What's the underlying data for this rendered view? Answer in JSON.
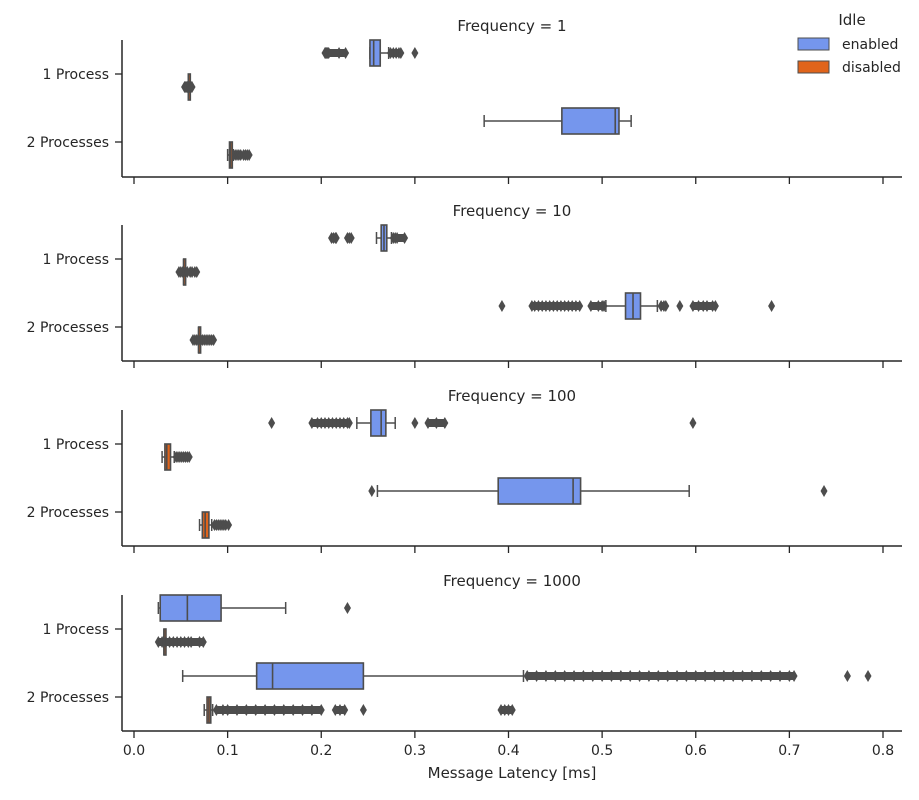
{
  "chart_data": {
    "type": "box",
    "xlabel": "Message Latency [ms]",
    "xlim": [
      -0.01,
      0.82
    ],
    "xticks": [
      0.0,
      0.1,
      0.2,
      0.3,
      0.4,
      0.5,
      0.6,
      0.7,
      0.8
    ],
    "xtick_labels": [
      "0.0",
      "0.1",
      "0.2",
      "0.3",
      "0.4",
      "0.5",
      "0.6",
      "0.7",
      "0.8"
    ],
    "categories": [
      "1 Process",
      "2 Processes"
    ],
    "legend": {
      "title": "Idle",
      "placement": "top-right",
      "entries": [
        {
          "label": "enabled",
          "color": "#7596ed"
        },
        {
          "label": "disabled",
          "color": "#e0641b"
        }
      ]
    },
    "colors": {
      "enabled": "#7596ed",
      "disabled": "#e0641b",
      "line": "#4d4d4d",
      "axis": "#262626"
    },
    "panels": [
      {
        "title": "Frequency = 1",
        "boxes": [
          {
            "category": "1 Process",
            "hue": "enabled",
            "whislo": 0.252,
            "q1": 0.252,
            "med": 0.256,
            "q3": 0.263,
            "whishi": 0.272,
            "fliers": [
              0.204,
              0.205,
              0.206,
              0.207,
              0.208,
              0.219,
              0.226,
              0.274,
              0.277,
              0.28,
              0.283,
              0.285,
              0.3
            ]
          },
          {
            "category": "1 Process",
            "hue": "disabled",
            "whislo": 0.058,
            "q1": 0.058,
            "med": 0.058,
            "q3": 0.058,
            "whishi": 0.058,
            "fliers": [
              0.054,
              0.055,
              0.056,
              0.057,
              0.059,
              0.06,
              0.061,
              0.062
            ]
          },
          {
            "category": "2 Processes",
            "hue": "enabled",
            "whislo": 0.374,
            "q1": 0.457,
            "med": 0.514,
            "q3": 0.518,
            "whishi": 0.531,
            "fliers": []
          },
          {
            "category": "2 Processes",
            "hue": "disabled",
            "whislo": 0.1,
            "q1": 0.102,
            "med": 0.103,
            "q3": 0.105,
            "whishi": 0.106,
            "fliers": [
              0.108,
              0.11,
              0.112,
              0.114,
              0.117,
              0.119,
              0.121,
              0.123
            ]
          }
        ]
      },
      {
        "title": "Frequency = 10",
        "boxes": [
          {
            "category": "1 Process",
            "hue": "enabled",
            "whislo": 0.259,
            "q1": 0.264,
            "med": 0.267,
            "q3": 0.27,
            "whishi": 0.275,
            "fliers": [
              0.211,
              0.213,
              0.215,
              0.216,
              0.228,
              0.23,
              0.232,
              0.277,
              0.279,
              0.281,
              0.289
            ]
          },
          {
            "category": "1 Process",
            "hue": "disabled",
            "whislo": 0.053,
            "q1": 0.053,
            "med": 0.053,
            "q3": 0.053,
            "whishi": 0.053,
            "fliers": [
              0.048,
              0.05,
              0.052,
              0.055,
              0.057,
              0.06,
              0.062,
              0.065,
              0.067
            ]
          },
          {
            "category": "2 Processes",
            "hue": "enabled",
            "whislo": 0.504,
            "q1": 0.525,
            "med": 0.533,
            "q3": 0.541,
            "whishi": 0.559,
            "fliers": [
              0.393,
              0.425,
              0.428,
              0.432,
              0.436,
              0.44,
              0.444,
              0.448,
              0.452,
              0.456,
              0.46,
              0.464,
              0.468,
              0.472,
              0.476,
              0.488,
              0.496,
              0.5,
              0.502,
              0.563,
              0.566,
              0.568,
              0.583,
              0.597,
              0.603,
              0.608,
              0.612,
              0.618,
              0.621,
              0.681
            ]
          },
          {
            "category": "2 Processes",
            "hue": "disabled",
            "whislo": 0.069,
            "q1": 0.069,
            "med": 0.069,
            "q3": 0.069,
            "whishi": 0.069,
            "fliers": [
              0.063,
              0.065,
              0.067,
              0.071,
              0.073,
              0.075,
              0.077,
              0.079,
              0.081,
              0.083,
              0.085
            ]
          }
        ]
      },
      {
        "title": "Frequency = 100",
        "boxes": [
          {
            "category": "1 Process",
            "hue": "enabled",
            "whislo": 0.238,
            "q1": 0.253,
            "med": 0.264,
            "q3": 0.269,
            "whishi": 0.279,
            "fliers": [
              0.147,
              0.19,
              0.196,
              0.2,
              0.204,
              0.208,
              0.212,
              0.216,
              0.22,
              0.224,
              0.228,
              0.23,
              0.3,
              0.314,
              0.323,
              0.332,
              0.597
            ]
          },
          {
            "category": "1 Process",
            "hue": "disabled",
            "whislo": 0.03,
            "q1": 0.033,
            "med": 0.035,
            "q3": 0.039,
            "whishi": 0.043,
            "fliers": [
              0.045,
              0.047,
              0.049,
              0.051,
              0.053,
              0.055,
              0.057,
              0.059
            ]
          },
          {
            "category": "2 Processes",
            "hue": "enabled",
            "whislo": 0.26,
            "q1": 0.389,
            "med": 0.469,
            "q3": 0.477,
            "whishi": 0.593,
            "fliers": [
              0.254,
              0.737
            ]
          },
          {
            "category": "2 Processes",
            "hue": "disabled",
            "whislo": 0.07,
            "q1": 0.073,
            "med": 0.076,
            "q3": 0.08,
            "whishi": 0.083,
            "fliers": [
              0.086,
              0.088,
              0.09,
              0.092,
              0.094,
              0.096,
              0.098,
              0.101
            ]
          }
        ]
      },
      {
        "title": "Frequency = 1000",
        "boxes": [
          {
            "category": "1 Process",
            "hue": "enabled",
            "whislo": 0.026,
            "q1": 0.028,
            "med": 0.057,
            "q3": 0.093,
            "whishi": 0.162,
            "fliers": [
              0.228
            ]
          },
          {
            "category": "1 Process",
            "hue": "disabled",
            "whislo": 0.032,
            "q1": 0.032,
            "med": 0.032,
            "q3": 0.032,
            "whishi": 0.032,
            "fliers": [
              0.026,
              0.03,
              0.034,
              0.038,
              0.042,
              0.046,
              0.05,
              0.054,
              0.058,
              0.061,
              0.07,
              0.074
            ]
          },
          {
            "category": "2 Processes",
            "hue": "enabled",
            "whislo": 0.052,
            "q1": 0.131,
            "med": 0.148,
            "q3": 0.245,
            "whishi": 0.416,
            "fliers": [
              0.42,
              0.43,
              0.44,
              0.45,
              0.46,
              0.47,
              0.48,
              0.49,
              0.5,
              0.51,
              0.52,
              0.53,
              0.54,
              0.55,
              0.56,
              0.57,
              0.58,
              0.59,
              0.6,
              0.61,
              0.62,
              0.63,
              0.64,
              0.65,
              0.66,
              0.67,
              0.68,
              0.69,
              0.7,
              0.705,
              0.762,
              0.784
            ]
          },
          {
            "category": "2 Processes",
            "hue": "disabled",
            "whislo": 0.075,
            "q1": 0.078,
            "med": 0.08,
            "q3": 0.082,
            "whishi": 0.084,
            "fliers": [
              0.088,
              0.095,
              0.1,
              0.11,
              0.12,
              0.13,
              0.14,
              0.15,
              0.16,
              0.17,
              0.18,
              0.19,
              0.2,
              0.215,
              0.22,
              0.225,
              0.245,
              0.392,
              0.396,
              0.4,
              0.404
            ]
          }
        ]
      }
    ]
  }
}
